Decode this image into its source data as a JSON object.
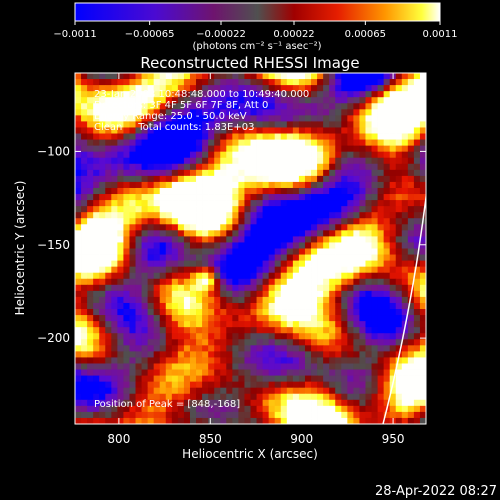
{
  "chart_data": {
    "type": "heatmap",
    "title": "Reconstructed RHESSI Image",
    "xlabel": "Heliocentric X (arcsec)",
    "ylabel": "Heliocentric Y (arcsec)",
    "xlim": [
      776,
      968
    ],
    "ylim": [
      -246,
      -58
    ],
    "x_ticks": [
      800,
      850,
      900,
      950
    ],
    "y_ticks": [
      -100,
      -150,
      -200
    ],
    "x_tick_labels": [
      "800",
      "850",
      "900",
      "950"
    ],
    "y_tick_labels": [
      "−100",
      "−150",
      "−200"
    ],
    "colorbar": {
      "range": [
        -0.0011,
        0.0011
      ],
      "ticks": [
        -0.0011,
        -0.00065,
        -0.00022,
        0.00022,
        0.00065,
        0.0011
      ],
      "tick_labels": [
        "−0.0011",
        "−0.00065",
        "−0.00022",
        "0.00022",
        "0.00065",
        "0.0011"
      ],
      "unit_label": "(photons cm⁻² s⁻¹ asec⁻²)"
    },
    "annotations": [
      "23-Jan-2003 10:48:48.000 to 10:49:40.000",
      "Detectors: 3F 4F 5F 6F 7F 8F, Att 0",
      "Energy Range: 25.0 - 50.0 keV",
      "Clean     Total counts: 1.83E+03"
    ],
    "peak": {
      "label": "Position of Peak = [848,-168]",
      "x": 848,
      "y": -168
    },
    "limb_color": "#ffffff",
    "colormap": [
      "#0000ff",
      "#5a0ad2",
      "#78148c",
      "#505050",
      "#8c0000",
      "#e61400",
      "#ff8c00",
      "#ffff1e",
      "#ffffff"
    ]
  },
  "footer": {
    "timestamp": "28-Apr-2022 08:27"
  }
}
